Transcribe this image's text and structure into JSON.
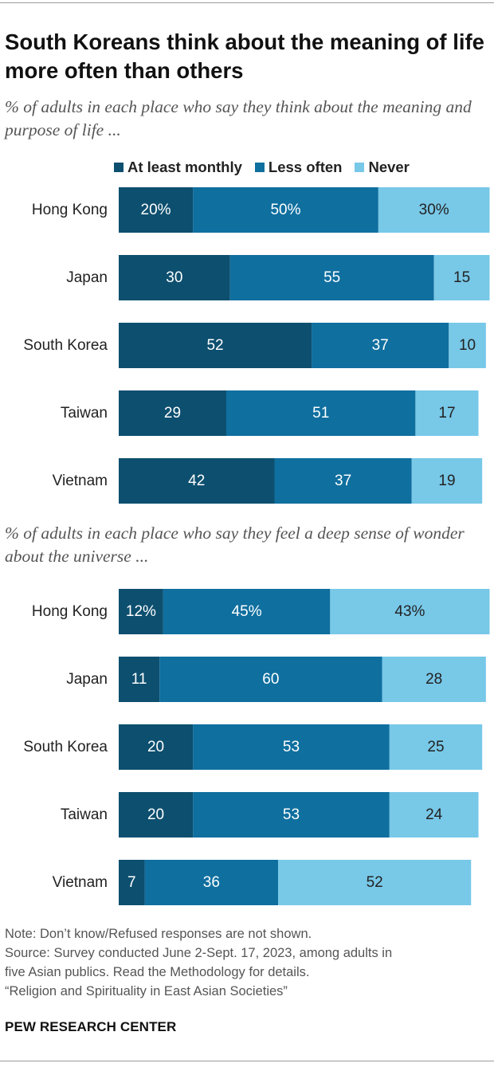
{
  "title": "South Koreans think about the meaning of life more often than others",
  "colors": {
    "at_least_monthly": "#0d4f6f",
    "less_often": "#0f6f9f",
    "never": "#78c8e8",
    "label_light": "#ffffff",
    "label_dark": "#222222"
  },
  "legend": {
    "at_least_monthly": "At least monthly",
    "less_often": "Less often",
    "never": "Never"
  },
  "chart_data": [
    {
      "type": "bar",
      "orientation": "horizontal-stacked",
      "subtitle": "% of adults in each place who say they think about the meaning and purpose of life ...",
      "categories": [
        "Hong Kong",
        "Japan",
        "South Korea",
        "Taiwan",
        "Vietnam"
      ],
      "series": [
        {
          "name": "At least monthly",
          "values": [
            20,
            30,
            52,
            29,
            42
          ],
          "labels": [
            "20%",
            "30",
            "52",
            "29",
            "42"
          ]
        },
        {
          "name": "Less often",
          "values": [
            50,
            55,
            37,
            51,
            37
          ],
          "labels": [
            "50%",
            "55",
            "37",
            "51",
            "37"
          ]
        },
        {
          "name": "Never",
          "values": [
            30,
            15,
            10,
            17,
            19
          ],
          "labels": [
            "30%",
            "15",
            "10",
            "17",
            "19"
          ]
        }
      ],
      "xlim": [
        0,
        100
      ],
      "grid": false,
      "legend": "top"
    },
    {
      "type": "bar",
      "orientation": "horizontal-stacked",
      "subtitle": "% of adults in each place who say they feel a deep sense of wonder about the universe ...",
      "categories": [
        "Hong Kong",
        "Japan",
        "South Korea",
        "Taiwan",
        "Vietnam"
      ],
      "series": [
        {
          "name": "At least monthly",
          "values": [
            12,
            11,
            20,
            20,
            7
          ],
          "labels": [
            "12%",
            "11",
            "20",
            "20",
            "7"
          ]
        },
        {
          "name": "Less often",
          "values": [
            45,
            60,
            53,
            53,
            36
          ],
          "labels": [
            "45%",
            "60",
            "53",
            "53",
            "36"
          ]
        },
        {
          "name": "Never",
          "values": [
            43,
            28,
            25,
            24,
            52
          ],
          "labels": [
            "43%",
            "28",
            "25",
            "24",
            "52"
          ]
        }
      ],
      "xlim": [
        0,
        100
      ],
      "grid": false
    }
  ],
  "note": {
    "line1": "Note: Don’t know/Refused responses are not shown.",
    "line2": "Source: Survey conducted June 2-Sept. 17, 2023, among adults in",
    "line3": "five Asian publics. Read the Methodology for details.",
    "line4": "“Religion and Spirituality in East Asian Societies”"
  },
  "credit": "PEW RESEARCH CENTER"
}
